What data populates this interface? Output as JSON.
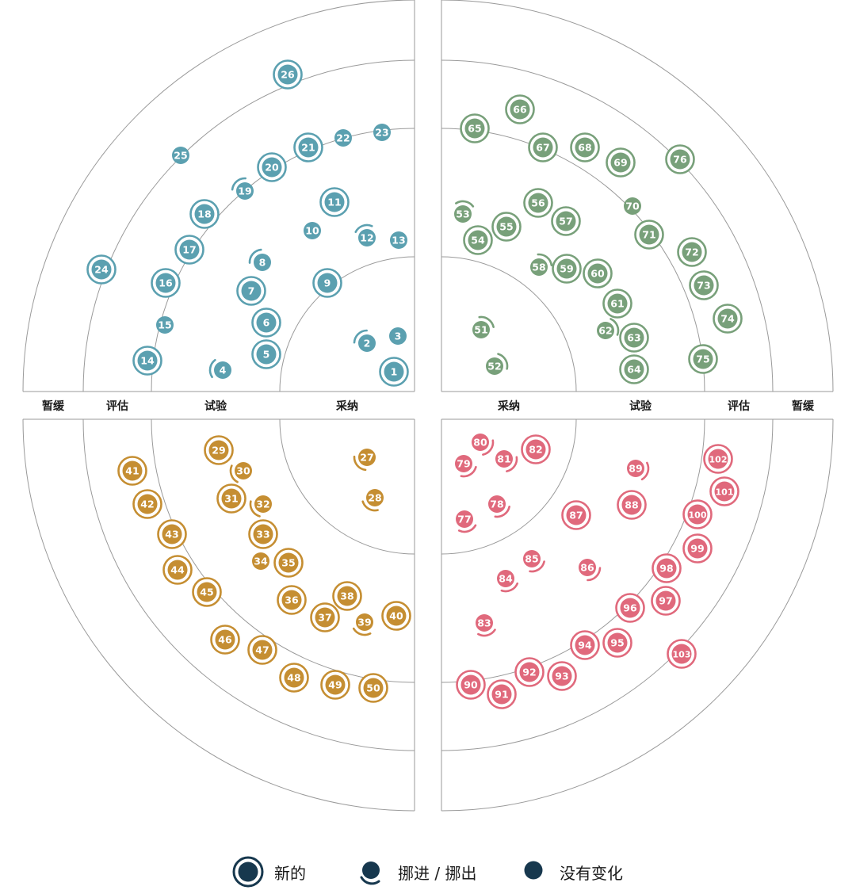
{
  "ring_labels": [
    "采纳",
    "试验",
    "评估",
    "暂缓"
  ],
  "colors": {
    "teal": "#5ba0b0",
    "green": "#78a07a",
    "gold": "#c58e32",
    "pink": "#e0697c",
    "legend": "#17384e",
    "line": "#9a9a9a"
  },
  "quadrants": [
    {
      "color": "#5ba0b0",
      "blips": [
        {
          "n": 1,
          "ring": "采纳",
          "status": "new"
        },
        {
          "n": 2,
          "ring": "采纳",
          "status": "moved"
        },
        {
          "n": 3,
          "ring": "采纳",
          "status": "none"
        },
        {
          "n": 4,
          "ring": "试验",
          "status": "moved"
        },
        {
          "n": 5,
          "ring": "试验",
          "status": "new"
        },
        {
          "n": 6,
          "ring": "试验",
          "status": "new"
        },
        {
          "n": 7,
          "ring": "试验",
          "status": "new"
        },
        {
          "n": 8,
          "ring": "试验",
          "status": "moved"
        },
        {
          "n": 9,
          "ring": "试验",
          "status": "new"
        },
        {
          "n": 10,
          "ring": "试验",
          "status": "none"
        },
        {
          "n": 11,
          "ring": "试验",
          "status": "new"
        },
        {
          "n": 12,
          "ring": "试验",
          "status": "moved"
        },
        {
          "n": 13,
          "ring": "试验",
          "status": "none"
        },
        {
          "n": 14,
          "ring": "评估",
          "status": "new"
        },
        {
          "n": 15,
          "ring": "评估",
          "status": "none"
        },
        {
          "n": 16,
          "ring": "评估",
          "status": "new"
        },
        {
          "n": 17,
          "ring": "评估",
          "status": "new"
        },
        {
          "n": 18,
          "ring": "评估",
          "status": "new"
        },
        {
          "n": 19,
          "ring": "评估",
          "status": "moved"
        },
        {
          "n": 20,
          "ring": "评估",
          "status": "new"
        },
        {
          "n": 21,
          "ring": "评估",
          "status": "new"
        },
        {
          "n": 22,
          "ring": "评估",
          "status": "none"
        },
        {
          "n": 23,
          "ring": "评估",
          "status": "none"
        },
        {
          "n": 24,
          "ring": "暂缓",
          "status": "new"
        },
        {
          "n": 25,
          "ring": "暂缓",
          "status": "none"
        },
        {
          "n": 26,
          "ring": "暂缓",
          "status": "new"
        }
      ]
    },
    {
      "color": "#78a07a",
      "blips": [
        {
          "n": 51,
          "ring": "采纳",
          "status": "moved"
        },
        {
          "n": 52,
          "ring": "采纳",
          "status": "moved"
        },
        {
          "n": 53,
          "ring": "试验",
          "status": "moved"
        },
        {
          "n": 54,
          "ring": "试验",
          "status": "new"
        },
        {
          "n": 55,
          "ring": "试验",
          "status": "new"
        },
        {
          "n": 56,
          "ring": "试验",
          "status": "new"
        },
        {
          "n": 57,
          "ring": "试验",
          "status": "new"
        },
        {
          "n": 58,
          "ring": "试验",
          "status": "moved"
        },
        {
          "n": 59,
          "ring": "试验",
          "status": "new"
        },
        {
          "n": 60,
          "ring": "试验",
          "status": "new"
        },
        {
          "n": 61,
          "ring": "试验",
          "status": "new"
        },
        {
          "n": 62,
          "ring": "试验",
          "status": "moved"
        },
        {
          "n": 63,
          "ring": "试验",
          "status": "new"
        },
        {
          "n": 64,
          "ring": "试验",
          "status": "new"
        },
        {
          "n": 65,
          "ring": "评估",
          "status": "new"
        },
        {
          "n": 66,
          "ring": "评估",
          "status": "new"
        },
        {
          "n": 67,
          "ring": "评估",
          "status": "new"
        },
        {
          "n": 68,
          "ring": "评估",
          "status": "new"
        },
        {
          "n": 69,
          "ring": "评估",
          "status": "new"
        },
        {
          "n": 70,
          "ring": "评估",
          "status": "none"
        },
        {
          "n": 71,
          "ring": "评估",
          "status": "new"
        },
        {
          "n": 72,
          "ring": "评估",
          "status": "new"
        },
        {
          "n": 73,
          "ring": "评估",
          "status": "new"
        },
        {
          "n": 74,
          "ring": "评估",
          "status": "new"
        },
        {
          "n": 75,
          "ring": "评估",
          "status": "new"
        },
        {
          "n": 76,
          "ring": "暂缓",
          "status": "new"
        }
      ]
    },
    {
      "color": "#c58e32",
      "blips": [
        {
          "n": 27,
          "ring": "采纳",
          "status": "moved"
        },
        {
          "n": 28,
          "ring": "采纳",
          "status": "moved"
        },
        {
          "n": 29,
          "ring": "试验",
          "status": "new"
        },
        {
          "n": 30,
          "ring": "试验",
          "status": "moved"
        },
        {
          "n": 31,
          "ring": "试验",
          "status": "new"
        },
        {
          "n": 32,
          "ring": "试验",
          "status": "moved"
        },
        {
          "n": 33,
          "ring": "试验",
          "status": "new"
        },
        {
          "n": 34,
          "ring": "试验",
          "status": "none"
        },
        {
          "n": 35,
          "ring": "试验",
          "status": "new"
        },
        {
          "n": 36,
          "ring": "试验",
          "status": "new"
        },
        {
          "n": 37,
          "ring": "试验",
          "status": "new"
        },
        {
          "n": 38,
          "ring": "试验",
          "status": "new"
        },
        {
          "n": 39,
          "ring": "试验",
          "status": "moved"
        },
        {
          "n": 40,
          "ring": "试验",
          "status": "new"
        },
        {
          "n": 41,
          "ring": "评估",
          "status": "new"
        },
        {
          "n": 42,
          "ring": "评估",
          "status": "new"
        },
        {
          "n": 43,
          "ring": "评估",
          "status": "new"
        },
        {
          "n": 44,
          "ring": "评估",
          "status": "new"
        },
        {
          "n": 45,
          "ring": "评估",
          "status": "new"
        },
        {
          "n": 46,
          "ring": "评估",
          "status": "new"
        },
        {
          "n": 47,
          "ring": "评估",
          "status": "new"
        },
        {
          "n": 48,
          "ring": "评估",
          "status": "new"
        },
        {
          "n": 49,
          "ring": "评估",
          "status": "new"
        },
        {
          "n": 50,
          "ring": "评估",
          "status": "new"
        }
      ]
    },
    {
      "color": "#e0697c",
      "blips": [
        {
          "n": 77,
          "ring": "采纳",
          "status": "moved"
        },
        {
          "n": 78,
          "ring": "采纳",
          "status": "moved"
        },
        {
          "n": 79,
          "ring": "采纳",
          "status": "moved"
        },
        {
          "n": 80,
          "ring": "采纳",
          "status": "moved"
        },
        {
          "n": 81,
          "ring": "采纳",
          "status": "moved"
        },
        {
          "n": 82,
          "ring": "试验",
          "status": "new"
        },
        {
          "n": 83,
          "ring": "试验",
          "status": "moved"
        },
        {
          "n": 84,
          "ring": "试验",
          "status": "moved"
        },
        {
          "n": 85,
          "ring": "试验",
          "status": "moved"
        },
        {
          "n": 86,
          "ring": "试验",
          "status": "moved"
        },
        {
          "n": 87,
          "ring": "试验",
          "status": "new"
        },
        {
          "n": 88,
          "ring": "试验",
          "status": "new"
        },
        {
          "n": 89,
          "ring": "试验",
          "status": "moved"
        },
        {
          "n": 90,
          "ring": "评估",
          "status": "new"
        },
        {
          "n": 91,
          "ring": "评估",
          "status": "new"
        },
        {
          "n": 92,
          "ring": "评估",
          "status": "new"
        },
        {
          "n": 93,
          "ring": "评估",
          "status": "new"
        },
        {
          "n": 94,
          "ring": "评估",
          "status": "new"
        },
        {
          "n": 95,
          "ring": "评估",
          "status": "new"
        },
        {
          "n": 96,
          "ring": "评估",
          "status": "new"
        },
        {
          "n": 97,
          "ring": "评估",
          "status": "new"
        },
        {
          "n": 98,
          "ring": "评估",
          "status": "new"
        },
        {
          "n": 99,
          "ring": "评估",
          "status": "new"
        },
        {
          "n": 100,
          "ring": "评估",
          "status": "new"
        },
        {
          "n": 101,
          "ring": "评估",
          "status": "new"
        },
        {
          "n": 102,
          "ring": "评估",
          "status": "new"
        },
        {
          "n": 103,
          "ring": "暂缓",
          "status": "new"
        }
      ]
    }
  ],
  "legend": {
    "new_label": "新的",
    "moved_label": "挪进 / 挪出",
    "none_label": "没有变化"
  }
}
